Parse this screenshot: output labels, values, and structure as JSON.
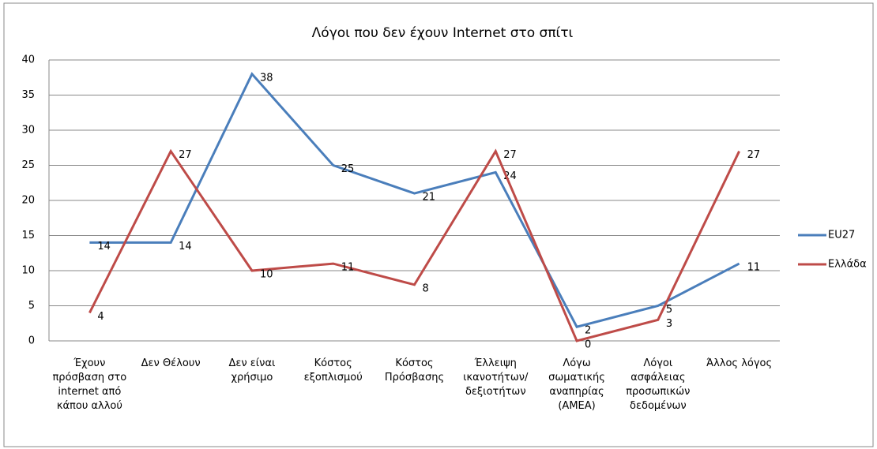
{
  "chart_data": {
    "type": "line",
    "title": "Λόγοι που δεν έχουν Internet στο σπίτι",
    "categories": [
      "Έχουν πρόσβαση στο internet από κάπου αλλού",
      "Δεν Θέλουν",
      "Δεν είναι χρήσιμο",
      "Κόστος εξοπλισμού",
      "Κόστος Πρόσβασης",
      "Έλλειψη ικανοτήτων/ δεξιοτήτων",
      "Λόγω σωματικής αναπηρίας (ΑΜΕΑ)",
      "Λόγοι ασφάλειας προσωπικών δεδομένων",
      "Άλλος λόγος"
    ],
    "series": [
      {
        "name": "EU27",
        "color": "#4a7ebb",
        "values": [
          14,
          14,
          38,
          25,
          21,
          24,
          2,
          5,
          11
        ]
      },
      {
        "name": "Ελλάδα",
        "color": "#be4b48",
        "values": [
          4,
          27,
          10,
          11,
          8,
          27,
          0,
          3,
          27
        ]
      }
    ],
    "ylim": [
      0,
      40
    ],
    "yticks": [
      0,
      5,
      10,
      15,
      20,
      25,
      30,
      35,
      40
    ],
    "grid": true,
    "legend": "right"
  }
}
